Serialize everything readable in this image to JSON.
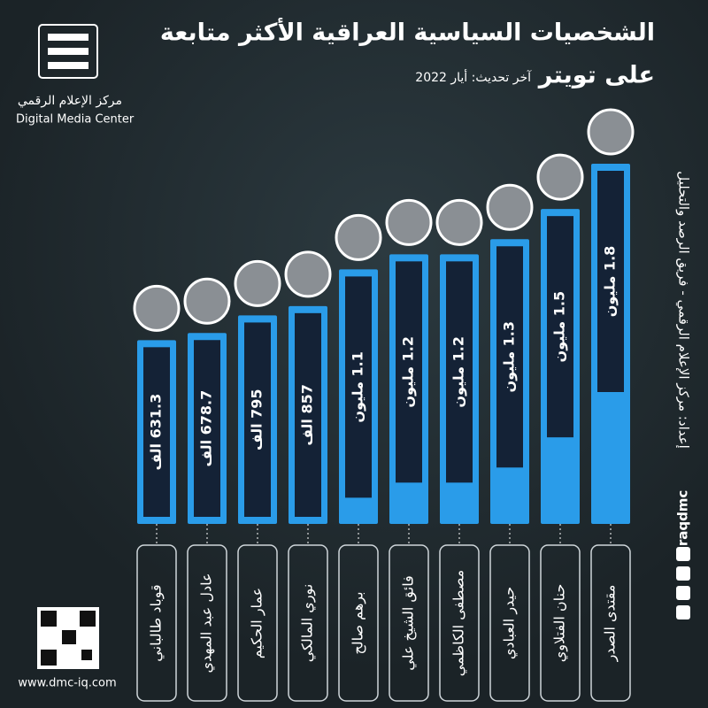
{
  "chart_data": {
    "type": "bar",
    "title": [
      "الشخصيات السياسية العراقية الأكثر متابعة",
      "على تويتر"
    ],
    "subtitle": "آخر تحديث: أيار 2022",
    "categories": [
      "قوباد طالباني",
      "عادل عبد المهدي",
      "عمار الحكيم",
      "نوري المالكي",
      "برهم صالح",
      "فائق الشيخ علي",
      "مصطفى الكاظمي",
      "حيدر العبادي",
      "حنان الفتلاوي",
      "مقتدى الصدر"
    ],
    "values": [
      631.3,
      678.7,
      795,
      857,
      1100,
      1200,
      1200,
      1300,
      1500,
      1800
    ],
    "value_labels": [
      "631.3 الف",
      "678.7 الف",
      "795 الف",
      "857 الف",
      "1.1 مليون",
      "1.2 مليون",
      "1.2 مليون",
      "1.3 مليون",
      "1.5 مليون",
      "1.8 مليون"
    ],
    "color": "#2a9ce9"
  },
  "brand": {
    "name_ar": "مركز الإعلام الرقمي",
    "name_en": "Digital Media Center",
    "credit": "إعداد: مركز الإعلام الرقمي - فريق الرصد والتحليل",
    "handle": "iraqdmc",
    "website": "www.dmc-iq.com"
  }
}
